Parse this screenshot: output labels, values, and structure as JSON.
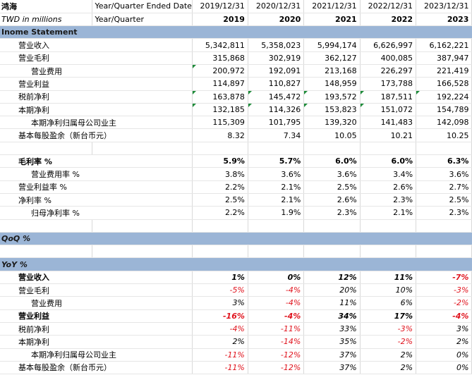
{
  "header": {
    "company": "鸿海",
    "row1_label": "Year/Quarter Ended Date",
    "row2_left": "TWD in millions",
    "row2_label": "Year/Quarter",
    "dates": [
      "2019/12/31",
      "2020/12/31",
      "2021/12/31",
      "2022/12/31",
      "2023/12/31"
    ],
    "years": [
      "2019",
      "2020",
      "2021",
      "2022",
      "2023"
    ]
  },
  "income_section_title": "Inome Statement",
  "income_rows": [
    {
      "label": "营业收入",
      "indent": 1,
      "bold": false,
      "values": [
        "5,342,811",
        "5,358,023",
        "5,994,174",
        "6,626,997",
        "6,162,221"
      ],
      "marks": [
        false,
        false,
        false,
        false,
        false
      ]
    },
    {
      "label": "营业毛利",
      "indent": 1,
      "bold": false,
      "values": [
        "315,868",
        "302,919",
        "362,127",
        "400,085",
        "387,947"
      ],
      "marks": [
        false,
        false,
        false,
        false,
        false
      ]
    },
    {
      "label": "营业费用",
      "indent": 2,
      "bold": false,
      "values": [
        "200,972",
        "192,091",
        "213,168",
        "226,297",
        "221,419"
      ],
      "marks": [
        true,
        false,
        false,
        false,
        false
      ]
    },
    {
      "label": "营业利益",
      "indent": 1,
      "bold": false,
      "values": [
        "114,897",
        "110,827",
        "148,959",
        "173,788",
        "166,528"
      ],
      "marks": [
        false,
        false,
        false,
        false,
        false
      ]
    },
    {
      "label": "税前净利",
      "indent": 1,
      "bold": false,
      "values": [
        "163,878",
        "145,472",
        "193,572",
        "187,511",
        "192,224"
      ],
      "marks": [
        true,
        true,
        true,
        true,
        true
      ]
    },
    {
      "label": "本期净利",
      "indent": 1,
      "bold": false,
      "values": [
        "132,185",
        "114,326",
        "153,823",
        "151,072",
        "154,789"
      ],
      "marks": [
        true,
        true,
        true,
        true,
        false
      ]
    },
    {
      "label": "本期净利归属母公司业主",
      "indent": 2,
      "bold": false,
      "values": [
        "115,309",
        "101,795",
        "139,320",
        "141,483",
        "142,098"
      ],
      "marks": [
        false,
        false,
        false,
        false,
        false
      ]
    },
    {
      "label": "基本每股盈余（新台币元）",
      "indent": 1,
      "bold": false,
      "values": [
        "8.32",
        "7.34",
        "10.05",
        "10.21",
        "10.25"
      ],
      "marks": [
        false,
        false,
        false,
        false,
        false
      ]
    }
  ],
  "ratio_rows": [
    {
      "label": "毛利率 %",
      "indent": 1,
      "bold": true,
      "values": [
        "5.9%",
        "5.7%",
        "6.0%",
        "6.0%",
        "6.3%"
      ]
    },
    {
      "label": "营业费用率 %",
      "indent": 2,
      "bold": false,
      "values": [
        "3.8%",
        "3.6%",
        "3.6%",
        "3.4%",
        "3.6%"
      ]
    },
    {
      "label": "营业利益率 %",
      "indent": 1,
      "bold": false,
      "values": [
        "2.2%",
        "2.1%",
        "2.5%",
        "2.6%",
        "2.7%"
      ]
    },
    {
      "label": "净利率 %",
      "indent": 1,
      "bold": false,
      "values": [
        "2.5%",
        "2.1%",
        "2.6%",
        "2.3%",
        "2.5%"
      ]
    },
    {
      "label": "归母净利率 %",
      "indent": 2,
      "bold": false,
      "values": [
        "2.2%",
        "1.9%",
        "2.3%",
        "2.1%",
        "2.3%"
      ]
    }
  ],
  "qoq_section_title": "QoQ %",
  "yoy_section_title": "YoY %",
  "yoy_rows": [
    {
      "label": "营业收入",
      "indent": 1,
      "bold": true,
      "values": [
        "1%",
        "0%",
        "12%",
        "11%",
        "-7%"
      ],
      "neg": [
        false,
        false,
        false,
        false,
        true
      ]
    },
    {
      "label": "营业毛利",
      "indent": 1,
      "bold": false,
      "values": [
        "-5%",
        "-4%",
        "20%",
        "10%",
        "-3%"
      ],
      "neg": [
        true,
        true,
        false,
        false,
        true
      ]
    },
    {
      "label": "营业费用",
      "indent": 2,
      "bold": false,
      "values": [
        "3%",
        "-4%",
        "11%",
        "6%",
        "-2%"
      ],
      "neg": [
        false,
        true,
        false,
        false,
        true
      ]
    },
    {
      "label": "营业利益",
      "indent": 1,
      "bold": true,
      "values": [
        "-16%",
        "-4%",
        "34%",
        "17%",
        "-4%"
      ],
      "neg": [
        true,
        true,
        false,
        false,
        true
      ]
    },
    {
      "label": "税前净利",
      "indent": 1,
      "bold": false,
      "values": [
        "-4%",
        "-11%",
        "33%",
        "-3%",
        "3%"
      ],
      "neg": [
        true,
        true,
        false,
        true,
        false
      ]
    },
    {
      "label": "本期净利",
      "indent": 1,
      "bold": false,
      "values": [
        "2%",
        "-14%",
        "35%",
        "-2%",
        "2%"
      ],
      "neg": [
        false,
        true,
        false,
        true,
        false
      ]
    },
    {
      "label": "本期净利归属母公司业主",
      "indent": 2,
      "bold": false,
      "values": [
        "-11%",
        "-12%",
        "37%",
        "2%",
        "0%"
      ],
      "neg": [
        true,
        true,
        false,
        false,
        false
      ]
    },
    {
      "label": "基本每股盈余（新台币元）",
      "indent": 1,
      "bold": false,
      "values": [
        "-11%",
        "-12%",
        "37%",
        "2%",
        "0%"
      ],
      "neg": [
        true,
        true,
        false,
        false,
        false
      ]
    }
  ],
  "colors": {
    "section_bg": "#9bb5d6",
    "negative": "#e0141e",
    "comment_marker": "#1e8c3a"
  }
}
